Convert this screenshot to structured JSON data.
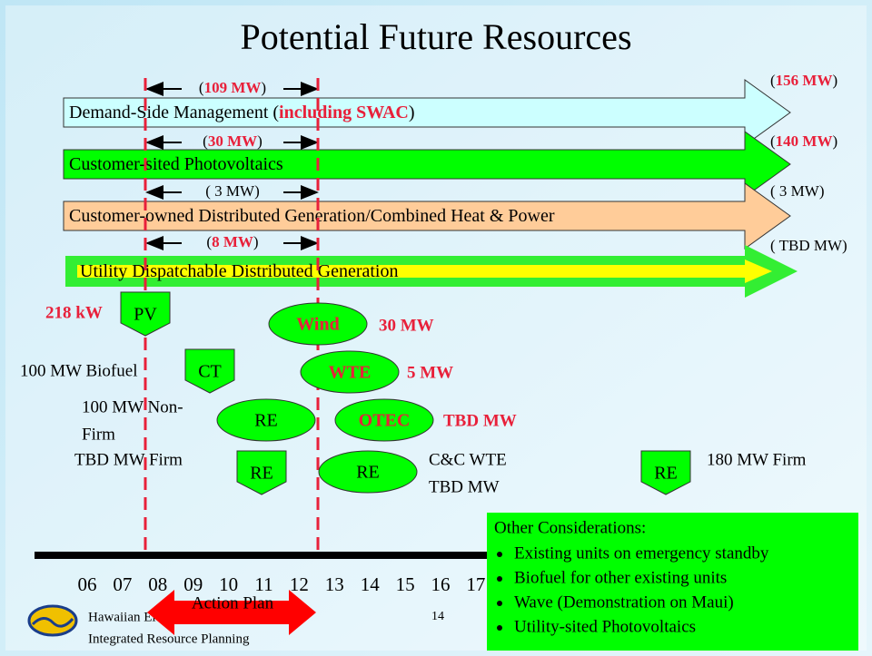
{
  "title": "Potential Future Resources",
  "arrows": [
    {
      "label": [
        "Demand-Side Management (",
        "including SWAC",
        ")"
      ],
      "near": [
        "(",
        "109 MW",
        ")"
      ],
      "total": [
        "(",
        "156 MW",
        ")"
      ]
    },
    {
      "label": [
        "Customer-sited Photovoltaics"
      ],
      "near": [
        "(",
        "30 MW",
        ")"
      ],
      "total": [
        "(",
        "140 MW",
        ")"
      ]
    },
    {
      "label": [
        "Customer-owned Distributed Generation/Combined Heat & Power"
      ],
      "near": [
        "( 3 MW)"
      ],
      "total": [
        "( 3 MW)"
      ]
    },
    {
      "label": [
        "Utility Dispatchable Distributed Generation"
      ],
      "near": [
        "(",
        "8 MW",
        ")"
      ],
      "total": [
        "( TBD MW)"
      ]
    }
  ],
  "resources": [
    {
      "shape": "pentagon",
      "label": "PV",
      "note": [
        "218 kW"
      ],
      "note_red": true
    },
    {
      "shape": "ellipse",
      "label": "Wind",
      "label_red": true,
      "note": [
        "30 MW"
      ],
      "note_red": true
    },
    {
      "shape": "pentagon",
      "label": "CT",
      "note": [
        "100 MW Biofuel"
      ]
    },
    {
      "shape": "ellipse",
      "label": "WTE",
      "label_red": true,
      "note": [
        "5 MW"
      ],
      "note_red": true
    },
    {
      "shape": "ellipse",
      "label": "RE",
      "note": [
        "100 MW Non-",
        "Firm"
      ]
    },
    {
      "shape": "ellipse",
      "label": "OTEC",
      "label_red": true,
      "note": [
        "TBD MW"
      ],
      "note_red": true
    },
    {
      "shape": "pentagon",
      "label": "RE",
      "note": [
        "TBD MW Firm"
      ]
    },
    {
      "shape": "ellipse",
      "label": "RE",
      "note": [
        "C&C WTE",
        "TBD MW"
      ]
    },
    {
      "shape": "pentagon",
      "label": "RE",
      "note": [
        "180 MW Firm"
      ]
    }
  ],
  "timeline": {
    "years": [
      "06",
      "07",
      "08",
      "09",
      "10",
      "11",
      "12",
      "13",
      "14",
      "15",
      "16",
      "17"
    ],
    "action_plan": "Action Plan"
  },
  "other": {
    "title": "Other Considerations:",
    "items": [
      "Existing units on emergency standby",
      "Biofuel for other existing units",
      "Wave (Demonstration on Maui)",
      "Utility-sited Photovoltaics"
    ]
  },
  "footer": {
    "company": "Hawaiian Electric Company, Inc.",
    "department": "Integrated Resource Planning",
    "page": "14"
  }
}
